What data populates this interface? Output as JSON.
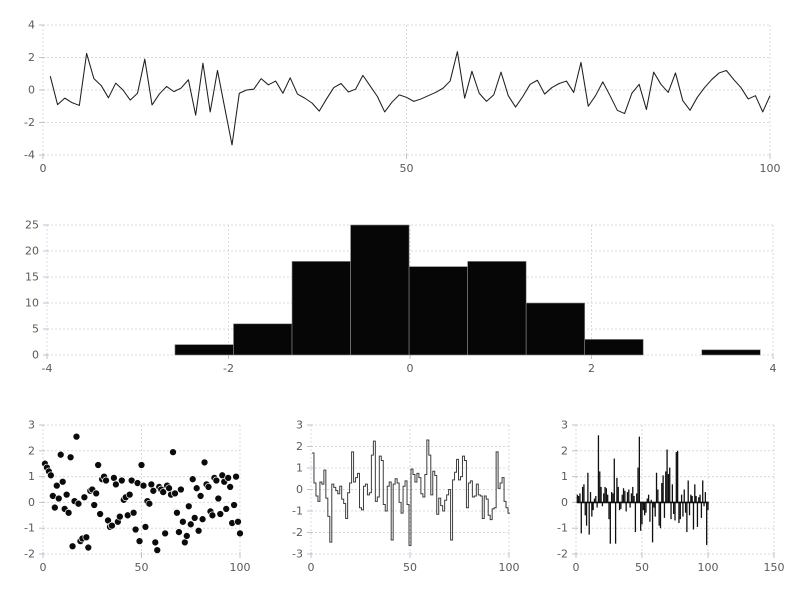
{
  "figure": {
    "background": "#ffffff",
    "layout": "3 rows: full-width line chart, full-width histogram, three small charts (scatter, step, stem)"
  },
  "style": {
    "grid_color": "#d8d8e4",
    "grid_dash": "2 2",
    "tick_color": "#c2c2d0",
    "tick_label_color": "#5a5a5a",
    "tick_font_size": 11
  },
  "chart_data": [
    {
      "id": "line",
      "type": "line",
      "title": "",
      "xlabel": "",
      "ylabel": "",
      "legend": "none",
      "grid": true,
      "xlim": [
        0,
        100
      ],
      "ylim": [
        -4,
        4
      ],
      "xticks": [
        0,
        50,
        100
      ],
      "yticks": [
        -4,
        -2,
        0,
        2,
        4
      ],
      "color": "#1f1f1f",
      "x_start": 1,
      "values": [
        0.85,
        -0.9,
        -0.5,
        -0.78,
        -0.95,
        2.25,
        0.7,
        0.28,
        -0.48,
        0.42,
        0.0,
        -0.62,
        -0.2,
        1.9,
        -0.92,
        -0.25,
        0.22,
        -0.1,
        0.12,
        0.63,
        -1.55,
        1.65,
        -1.35,
        1.2,
        -1.1,
        -3.38,
        -0.2,
        0.0,
        0.05,
        0.7,
        0.32,
        0.55,
        -0.2,
        0.75,
        -0.25,
        -0.5,
        -0.8,
        -1.3,
        -0.55,
        0.15,
        0.4,
        -0.12,
        0.05,
        0.9,
        0.25,
        -0.4,
        -1.35,
        -0.75,
        -0.3,
        -0.45,
        -0.7,
        -0.55,
        -0.35,
        -0.15,
        0.1,
        0.55,
        2.36,
        -0.5,
        1.15,
        -0.2,
        -0.7,
        -0.3,
        1.1,
        -0.35,
        -1.05,
        -0.4,
        0.35,
        0.6,
        -0.25,
        0.15,
        0.4,
        0.55,
        -0.15,
        1.7,
        -1.0,
        -0.35,
        0.5,
        -0.35,
        -1.25,
        -1.45,
        -0.2,
        0.35,
        -1.2,
        1.1,
        0.35,
        -0.15,
        1.05,
        -0.65,
        -1.25,
        -0.45,
        0.15,
        0.65,
        1.05,
        1.2,
        0.65,
        0.15,
        -0.55,
        -0.35,
        -1.35,
        -0.35
      ]
    },
    {
      "id": "histogram",
      "type": "histogram",
      "title": "",
      "xlabel": "",
      "ylabel": "",
      "legend": "none",
      "grid": true,
      "xlim": [
        -4,
        4
      ],
      "ylim": [
        0,
        25
      ],
      "xticks": [
        -4,
        -2,
        0,
        2,
        4
      ],
      "yticks": [
        0,
        5,
        10,
        15,
        20,
        25
      ],
      "color": "#060606",
      "edge_color": "#8a8a8a",
      "bin_start": -2.59,
      "bin_width": 0.645,
      "counts": [
        2,
        6,
        18,
        25,
        17,
        18,
        10,
        3,
        0,
        1
      ]
    },
    {
      "id": "scatter",
      "type": "scatter",
      "title": "",
      "xlabel": "",
      "ylabel": "",
      "legend": "none",
      "grid": true,
      "xlim": [
        0,
        100
      ],
      "ylim": [
        -2,
        3
      ],
      "xticks": [
        0,
        50,
        100
      ],
      "yticks": [
        -2,
        -1,
        0,
        1,
        2,
        3
      ],
      "color": "#0b0b0b",
      "x_start": 1,
      "values": [
        1.5,
        1.35,
        1.2,
        1.05,
        0.25,
        -0.2,
        0.65,
        0.15,
        1.85,
        0.8,
        -0.25,
        0.3,
        -0.4,
        1.75,
        -1.7,
        0.05,
        2.55,
        -0.05,
        -1.5,
        -1.4,
        0.2,
        -1.35,
        -1.75,
        0.45,
        0.5,
        -0.1,
        0.35,
        1.45,
        -0.45,
        0.9,
        1.0,
        0.85,
        -0.7,
        -0.95,
        -0.9,
        0.95,
        0.7,
        -0.75,
        -0.55,
        0.85,
        0.1,
        0.2,
        -0.5,
        0.3,
        0.85,
        -0.4,
        -1.05,
        0.75,
        -1.5,
        1.45,
        0.65,
        -0.95,
        0.05,
        -0.05,
        0.7,
        0.45,
        -1.55,
        -1.85,
        0.6,
        0.5,
        0.4,
        -1.2,
        0.65,
        0.55,
        0.3,
        1.95,
        0.35,
        -0.4,
        -1.15,
        0.5,
        -0.75,
        -1.55,
        -1.3,
        -0.15,
        -0.85,
        0.9,
        -0.6,
        0.55,
        -1.1,
        0.25,
        -0.65,
        1.55,
        0.7,
        0.6,
        -0.35,
        -0.5,
        0.95,
        0.85,
        0.15,
        -0.45,
        1.05,
        0.8,
        -0.25,
        0.95,
        0.6,
        -0.8,
        -0.1,
        1.0,
        -0.75,
        -1.2
      ]
    },
    {
      "id": "step",
      "type": "step",
      "title": "",
      "xlabel": "",
      "ylabel": "",
      "legend": "none",
      "grid": true,
      "xlim": [
        0,
        100
      ],
      "ylim": [
        -3,
        3
      ],
      "xticks": [
        0,
        50,
        100
      ],
      "yticks": [
        -3,
        -2,
        -1,
        0,
        1,
        2,
        3
      ],
      "color": "#3d3d3d",
      "x_start": 1,
      "values": [
        1.7,
        0.3,
        -0.3,
        -0.55,
        0.35,
        0.25,
        0.9,
        -0.4,
        -1.25,
        -2.45,
        0.25,
        0.1,
        -0.05,
        -0.2,
        0.15,
        -0.45,
        -0.65,
        -1.35,
        -0.15,
        0.3,
        1.75,
        0.35,
        0.55,
        0.75,
        -0.85,
        -0.95,
        0.15,
        0.25,
        -0.25,
        -0.15,
        1.6,
        2.25,
        -0.55,
        -0.35,
        1.55,
        1.35,
        -0.7,
        -1.0,
        0.15,
        0.35,
        -2.35,
        0.25,
        0.5,
        0.3,
        -0.6,
        -1.1,
        0.15,
        0.4,
        -0.7,
        -2.6,
        0.95,
        0.7,
        0.35,
        0.75,
        0.55,
        -0.2,
        -0.35,
        0.7,
        2.3,
        1.6,
        -0.25,
        0.85,
        0.65,
        -1.15,
        -0.4,
        -0.75,
        -1.0,
        -0.5,
        -0.25,
        0.0,
        -2.35,
        0.45,
        0.8,
        1.4,
        0.45,
        0.6,
        1.55,
        1.35,
        -0.85,
        0.3,
        0.4,
        -0.35,
        -0.3,
        0.25,
        -0.25,
        -0.3,
        -1.35,
        -0.3,
        -0.45,
        -1.2,
        -1.4,
        -0.9,
        -0.85,
        1.75,
        0.05,
        0.3,
        0.55,
        -0.55,
        -0.85,
        -1.1
      ]
    },
    {
      "id": "stem",
      "type": "stem",
      "title": "",
      "xlabel": "",
      "ylabel": "",
      "legend": "none",
      "grid": true,
      "xlim": [
        0,
        150
      ],
      "ylim": [
        -2,
        3
      ],
      "xticks": [
        0,
        50,
        100,
        150
      ],
      "yticks": [
        -2,
        -1,
        0,
        1,
        2,
        3
      ],
      "color": "#101010",
      "x_start": 1,
      "values": [
        0.3,
        0.25,
        0.35,
        -1.2,
        0.6,
        0.7,
        -0.5,
        -0.9,
        1.15,
        -1.25,
        0.4,
        -0.55,
        -0.3,
        0.15,
        0.25,
        -0.2,
        2.6,
        1.2,
        0.6,
        -0.15,
        0.35,
        0.6,
        0.55,
        0.3,
        -0.65,
        -1.6,
        0.4,
        0.35,
        1.7,
        -1.6,
        0.95,
        0.6,
        -0.3,
        -0.25,
        0.3,
        0.55,
        0.45,
        -0.35,
        0.4,
        0.5,
        -0.2,
        0.35,
        0.6,
        0.25,
        -1.15,
        0.35,
        1.35,
        2.55,
        -1.1,
        -0.85,
        -0.3,
        -0.5,
        -0.4,
        0.15,
        0.3,
        -0.75,
        0.1,
        -1.55,
        -0.2,
        -0.55,
        1.15,
        0.5,
        -0.9,
        -1.0,
        0.75,
        1.05,
        -0.6,
        1.2,
        2.05,
        1.1,
        1.35,
        -0.65,
        0.7,
        -0.45,
        -0.7,
        1.95,
        2.0,
        -0.8,
        -0.65,
        0.3,
        -0.55,
        0.5,
        -0.4,
        -1.15,
        0.85,
        -0.5,
        0.3,
        0.25,
        -1.05,
        0.7,
        0.25,
        -0.95,
        0.2,
        0.3,
        -0.6,
        0.85,
        -0.15,
        0.4,
        -1.65,
        -0.3
      ]
    }
  ]
}
